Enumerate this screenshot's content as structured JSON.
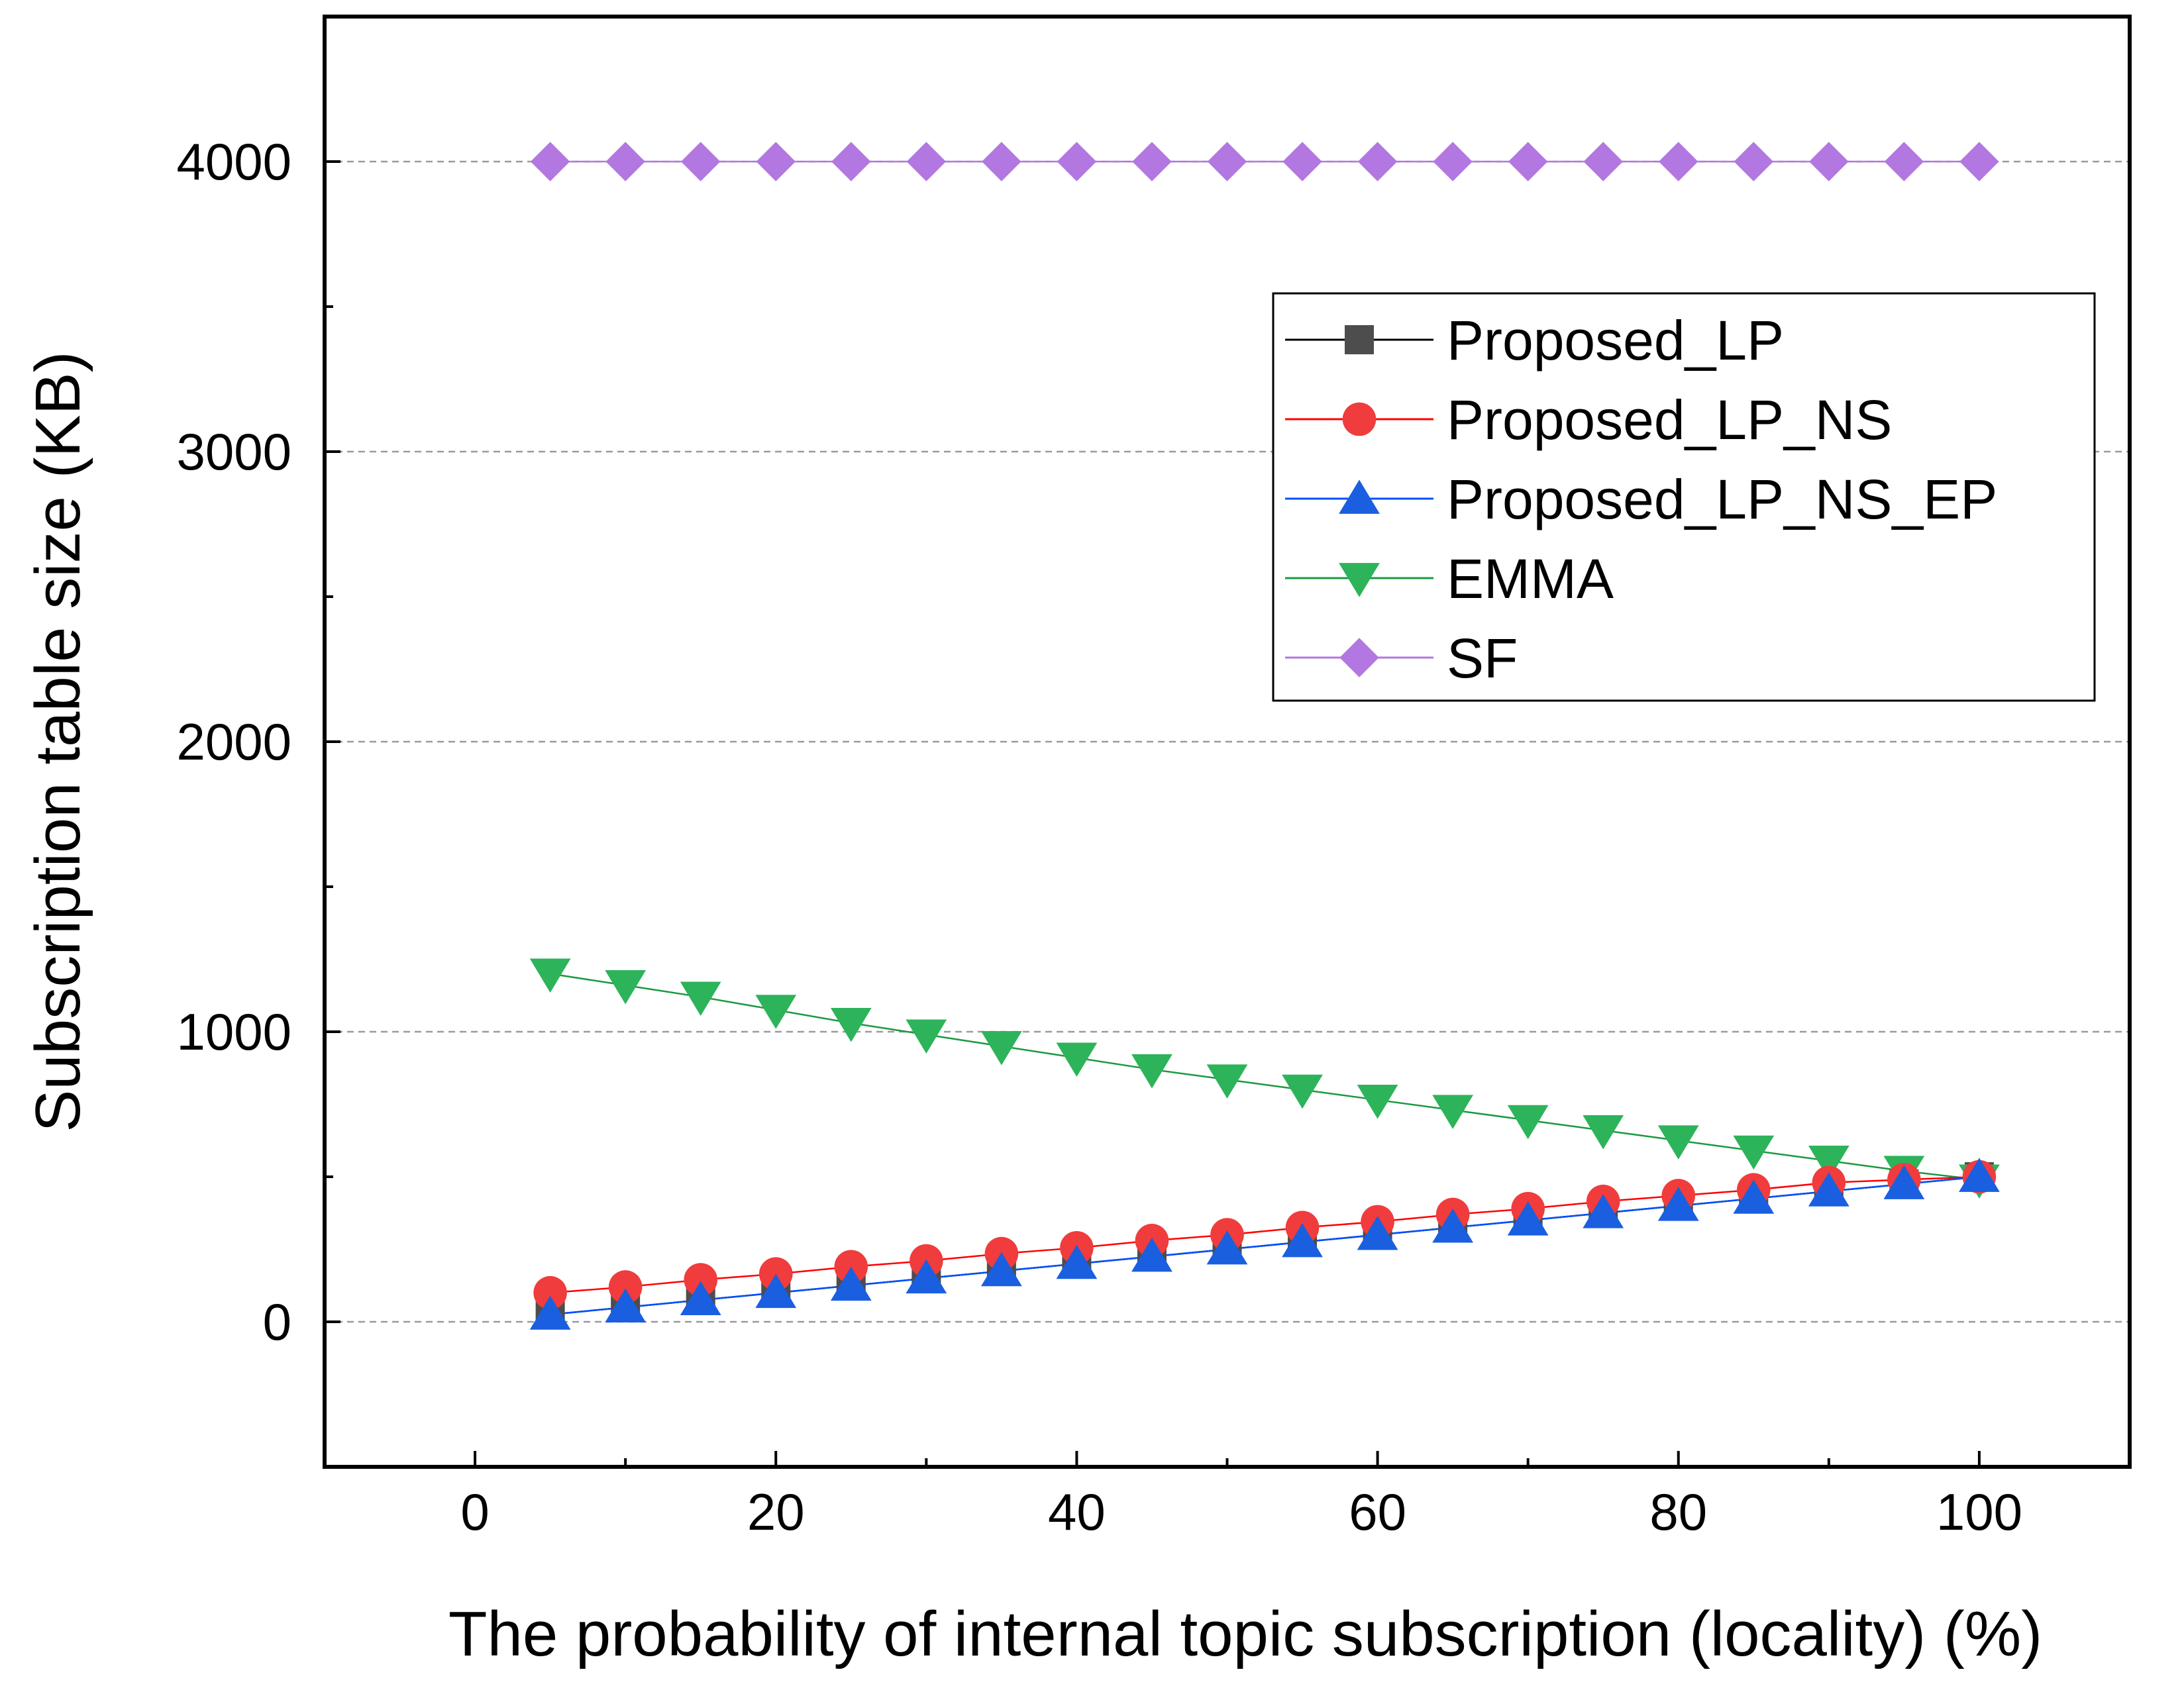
{
  "chart_data": {
    "type": "line",
    "title": "",
    "xlabel": "The probability of internal topic subscription (locality) (%)",
    "ylabel": "Subscription table size (KB)",
    "xlim": [
      -10,
      110
    ],
    "ylim": [
      -500,
      4500
    ],
    "x_ticks": [
      0,
      20,
      40,
      60,
      80,
      100
    ],
    "y_ticks": [
      0,
      1000,
      2000,
      3000,
      4000
    ],
    "grid": "horizontal dashed at major y ticks",
    "legend_position": "upper-right",
    "x": [
      5,
      10,
      15,
      20,
      25,
      30,
      35,
      40,
      45,
      50,
      55,
      60,
      65,
      70,
      75,
      80,
      85,
      90,
      95,
      100
    ],
    "series": [
      {
        "name": "Proposed_LP",
        "color": "#4d4d4d",
        "line_color": "#000000",
        "marker": "square",
        "values": [
          25,
          50,
          75,
          100,
          125,
          150,
          175,
          200,
          225,
          250,
          275,
          300,
          325,
          350,
          375,
          400,
          425,
          450,
          475,
          500
        ]
      },
      {
        "name": "Proposed_LP_NS",
        "color": "#f03c3c",
        "line_color": "#ff0000",
        "marker": "circle",
        "values": [
          100,
          120,
          145,
          165,
          190,
          210,
          235,
          255,
          280,
          300,
          325,
          345,
          370,
          390,
          415,
          435,
          455,
          480,
          490,
          500
        ]
      },
      {
        "name": "Proposed_LP_NS_EP",
        "color": "#1a5fe0",
        "line_color": "#0050ff",
        "marker": "triangle-up",
        "values": [
          25,
          50,
          75,
          100,
          125,
          150,
          175,
          200,
          225,
          250,
          275,
          300,
          325,
          350,
          375,
          400,
          425,
          450,
          475,
          500
        ]
      },
      {
        "name": "EMMA",
        "color": "#2db35a",
        "line_color": "#1a9a40",
        "marker": "triangle-down",
        "values": [
          1200,
          1160,
          1120,
          1075,
          1030,
          990,
          950,
          910,
          870,
          835,
          800,
          765,
          730,
          695,
          660,
          625,
          590,
          555,
          520,
          490
        ]
      },
      {
        "name": "SF",
        "color": "#b277e0",
        "line_color": "#b277e0",
        "marker": "diamond",
        "values": [
          4000,
          4000,
          4000,
          4000,
          4000,
          4000,
          4000,
          4000,
          4000,
          4000,
          4000,
          4000,
          4000,
          4000,
          4000,
          4000,
          4000,
          4000,
          4000,
          4000
        ]
      }
    ]
  }
}
